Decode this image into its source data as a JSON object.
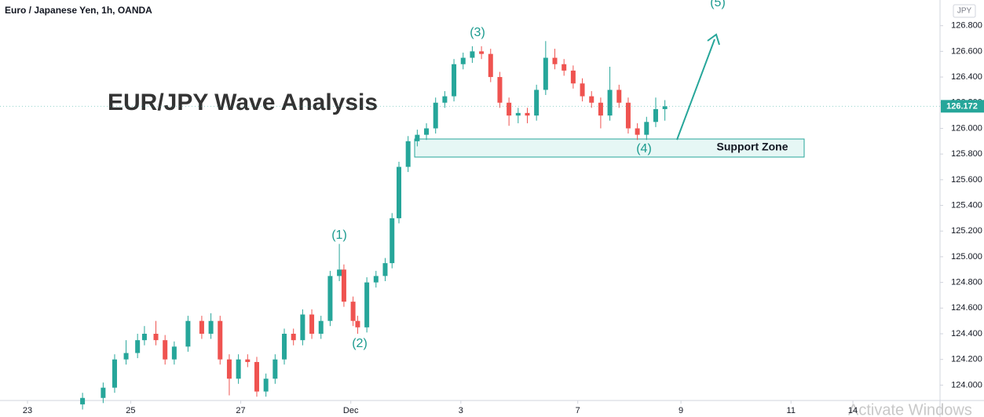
{
  "chart_data": {
    "type": "candlestick",
    "title": "EUR/JPY Wave Analysis",
    "subtitle": "Euro / Japanese Yen, 1h, OANDA",
    "currency": "JPY",
    "up_color": "#26a69a",
    "down_color": "#ef5350",
    "x": [
      36,
      45,
      50,
      55,
      60,
      63,
      68,
      72,
      76,
      82,
      88,
      92,
      96,
      100,
      104,
      108,
      112,
      116,
      120,
      124,
      128,
      132,
      136,
      140,
      144,
      148,
      150,
      154,
      156,
      160,
      164,
      168,
      171,
      174,
      178,
      182,
      186,
      190,
      194,
      198,
      202,
      206,
      210,
      214,
      218,
      222,
      226,
      230,
      234,
      238,
      242,
      246,
      250,
      254,
      258,
      262,
      266,
      270,
      274,
      278,
      282,
      286,
      290
    ],
    "open": [
      123.85,
      123.9,
      123.98,
      124.2,
      124.25,
      124.35,
      124.4,
      124.35,
      124.2,
      124.3,
      124.5,
      124.4,
      124.5,
      124.2,
      124.05,
      124.2,
      124.18,
      123.95,
      124.05,
      124.2,
      124.4,
      124.35,
      124.55,
      124.4,
      124.5,
      124.85,
      124.9,
      124.65,
      124.5,
      124.45,
      124.8,
      124.85,
      124.95,
      125.3,
      125.7,
      125.9,
      125.95,
      126.0,
      126.2,
      126.25,
      126.5,
      126.55,
      126.6,
      126.58,
      126.4,
      126.2,
      126.1,
      126.12,
      126.1,
      126.3,
      126.55,
      126.5,
      126.45,
      126.35,
      126.25,
      126.2,
      126.1,
      126.3,
      126.2,
      126.0,
      125.95,
      126.05,
      126.15
    ],
    "high": [
      123.94,
      124.02,
      124.24,
      124.35,
      124.4,
      124.46,
      124.5,
      124.39,
      124.34,
      124.54,
      124.54,
      124.56,
      124.54,
      124.24,
      124.24,
      124.24,
      124.22,
      124.09,
      124.24,
      124.44,
      124.44,
      124.59,
      124.59,
      124.54,
      124.89,
      125.1,
      124.94,
      124.69,
      124.54,
      124.84,
      124.89,
      124.99,
      125.34,
      125.74,
      125.94,
      125.99,
      126.04,
      126.24,
      126.29,
      126.54,
      126.59,
      126.64,
      126.64,
      126.62,
      126.44,
      126.24,
      126.16,
      126.16,
      126.34,
      126.68,
      126.62,
      126.54,
      126.49,
      126.39,
      126.29,
      126.24,
      126.48,
      126.34,
      126.24,
      126.04,
      126.09,
      126.24,
      126.22
    ],
    "low": [
      123.81,
      123.86,
      123.94,
      124.16,
      124.21,
      124.31,
      124.31,
      124.16,
      124.16,
      124.26,
      124.36,
      124.36,
      124.16,
      123.92,
      124.01,
      124.14,
      123.91,
      123.91,
      124.01,
      124.16,
      124.31,
      124.31,
      124.36,
      124.36,
      124.46,
      124.81,
      124.61,
      124.46,
      124.4,
      124.41,
      124.76,
      124.81,
      124.91,
      125.26,
      125.66,
      125.86,
      125.91,
      125.96,
      126.16,
      126.21,
      126.46,
      126.51,
      126.54,
      126.36,
      126.16,
      126.02,
      126.04,
      126.04,
      126.06,
      126.26,
      126.46,
      126.41,
      126.31,
      126.21,
      126.16,
      126.0,
      126.06,
      126.16,
      125.96,
      125.91,
      125.91,
      126.01,
      126.06
    ],
    "close": [
      123.9,
      123.98,
      124.2,
      124.25,
      124.35,
      124.4,
      124.35,
      124.2,
      124.3,
      124.5,
      124.4,
      124.5,
      124.2,
      124.05,
      124.2,
      124.18,
      123.95,
      124.05,
      124.2,
      124.4,
      124.35,
      124.55,
      124.4,
      124.5,
      124.85,
      124.9,
      124.65,
      124.5,
      124.45,
      124.8,
      124.85,
      124.95,
      125.3,
      125.7,
      125.9,
      125.95,
      126.0,
      126.2,
      126.25,
      126.5,
      126.55,
      126.6,
      126.58,
      126.4,
      126.2,
      126.1,
      126.12,
      126.1,
      126.3,
      126.55,
      126.5,
      126.45,
      126.35,
      126.25,
      126.2,
      126.1,
      126.3,
      126.2,
      126.0,
      125.95,
      126.05,
      126.15,
      126.172
    ],
    "xlim": [
      0,
      410
    ],
    "xticks": [
      {
        "value": 12,
        "label": "23"
      },
      {
        "value": 57,
        "label": "25"
      },
      {
        "value": 105,
        "label": "27"
      },
      {
        "value": 153,
        "label": "Dec"
      },
      {
        "value": 201,
        "label": "3"
      },
      {
        "value": 252,
        "label": "7"
      },
      {
        "value": 297,
        "label": "9"
      },
      {
        "value": 345,
        "label": "11"
      },
      {
        "value": 372,
        "label": "14"
      }
    ],
    "ylim": [
      123.88,
      127.0
    ],
    "yticks": [
      {
        "value": 124.0,
        "label": "124.000"
      },
      {
        "value": 124.2,
        "label": "124.200"
      },
      {
        "value": 124.4,
        "label": "124.400"
      },
      {
        "value": 124.6,
        "label": "124.600"
      },
      {
        "value": 124.8,
        "label": "124.800"
      },
      {
        "value": 125.0,
        "label": "125.000"
      },
      {
        "value": 125.2,
        "label": "125.200"
      },
      {
        "value": 125.4,
        "label": "125.400"
      },
      {
        "value": 125.6,
        "label": "125.600"
      },
      {
        "value": 125.8,
        "label": "125.800"
      },
      {
        "value": 126.0,
        "label": "126.000"
      },
      {
        "value": 126.2,
        "label": "126.200"
      },
      {
        "value": 126.4,
        "label": "126.400"
      },
      {
        "value": 126.6,
        "label": "126.600"
      },
      {
        "value": 126.8,
        "label": "126.800"
      }
    ],
    "last_value": 126.172,
    "annotations": [
      "(1)",
      "(2)",
      "(3)",
      "(4)",
      "(5)",
      "Support Zone"
    ],
    "watermark": "Activate Windows"
  }
}
